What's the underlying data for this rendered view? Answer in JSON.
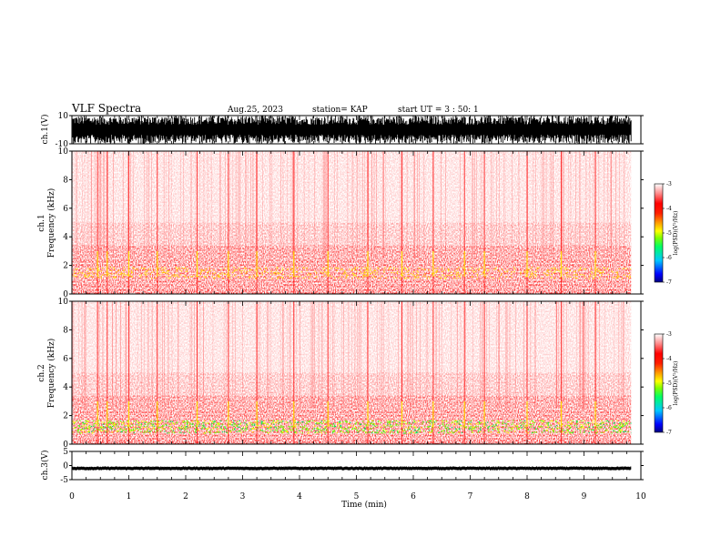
{
  "header": {
    "title": "VLF Spectra",
    "date": "Aug.25, 2023",
    "station": "station= KAP",
    "start": "start UT =  3 : 50: 1"
  },
  "chart_data": [
    {
      "type": "line",
      "panel": "waveform",
      "ylabel": "ch.1(V)",
      "ylim": [
        -10,
        10
      ],
      "yticks": [
        "10",
        "-10"
      ],
      "x_end_min": 9.83,
      "signal": "dense waveform filling the full range"
    },
    {
      "type": "heatmap",
      "panel": "spectrogram",
      "ylabel_channel": "ch.1",
      "ylabel": "Frequency (kHz)",
      "ylim": [
        0,
        10
      ],
      "yticks": [
        "0",
        "2",
        "4",
        "6",
        "8",
        "10"
      ],
      "x_end_min": 9.83,
      "bands": [
        {
          "from_khz": 0.0,
          "to_khz": 0.3,
          "level": 1.0
        },
        {
          "from_khz": 0.3,
          "to_khz": 1.1,
          "level": 0.62
        },
        {
          "from_khz": 1.1,
          "to_khz": 1.8,
          "level": 0.72
        },
        {
          "from_khz": 1.8,
          "to_khz": 2.5,
          "level": 0.58
        },
        {
          "from_khz": 2.5,
          "to_khz": 3.4,
          "level": 0.5
        },
        {
          "from_khz": 3.4,
          "to_khz": 5.0,
          "level": 0.32
        },
        {
          "from_khz": 5.0,
          "to_khz": 10.0,
          "level": 0.2
        }
      ],
      "bursts_min": [
        0.45,
        0.62,
        1.0,
        1.5,
        2.2,
        2.75,
        3.25,
        3.9,
        4.5,
        5.2,
        5.8,
        6.35,
        6.9,
        7.25,
        8.0,
        8.6,
        9.2
      ]
    },
    {
      "type": "heatmap",
      "panel": "spectrogram",
      "ylabel_channel": "ch.2",
      "ylabel": "Frequency (kHz)",
      "ylim": [
        0,
        10
      ],
      "yticks": [
        "0",
        "2",
        "4",
        "6",
        "8",
        "10"
      ],
      "x_end_min": 9.83,
      "bands": [
        {
          "from_khz": 0.0,
          "to_khz": 0.3,
          "level": 1.0
        },
        {
          "from_khz": 0.3,
          "to_khz": 0.8,
          "level": 0.7
        },
        {
          "from_khz": 0.8,
          "to_khz": 1.7,
          "level": 0.85
        },
        {
          "from_khz": 1.7,
          "to_khz": 2.5,
          "level": 0.62
        },
        {
          "from_khz": 2.5,
          "to_khz": 3.4,
          "level": 0.52
        },
        {
          "from_khz": 3.4,
          "to_khz": 5.0,
          "level": 0.32
        },
        {
          "from_khz": 5.0,
          "to_khz": 10.0,
          "level": 0.2
        }
      ],
      "bursts_min": [
        0.45,
        0.62,
        1.0,
        1.5,
        2.2,
        2.75,
        3.25,
        3.9,
        4.5,
        5.2,
        5.8,
        6.35,
        6.9,
        7.25,
        8.0,
        8.6,
        9.2
      ]
    },
    {
      "type": "line",
      "panel": "waveform",
      "ylabel": "ch.3(V)",
      "ylim": [
        -5,
        5
      ],
      "yticks": [
        "5",
        "0",
        "-5"
      ],
      "x_end_min": 9.83,
      "signal": "thin band around -1 V"
    }
  ],
  "xaxis": {
    "label": "Time (min)",
    "range": [
      0,
      10
    ],
    "ticks": [
      "0",
      "1",
      "2",
      "3",
      "4",
      "5",
      "6",
      "7",
      "8",
      "9",
      "10"
    ]
  },
  "colorbar": {
    "label": "log(PSD)(V²/Hz)",
    "range": [
      -7,
      -3
    ],
    "ticks": [
      "-3",
      "-4",
      "-5",
      "-6",
      "-7"
    ],
    "colors": [
      "#000080",
      "#0000ff",
      "#00c8ff",
      "#00ff66",
      "#80ff00",
      "#ffff00",
      "#ffa000",
      "#ff2000",
      "#ff0000",
      "#ff8888",
      "#ffffff"
    ]
  }
}
